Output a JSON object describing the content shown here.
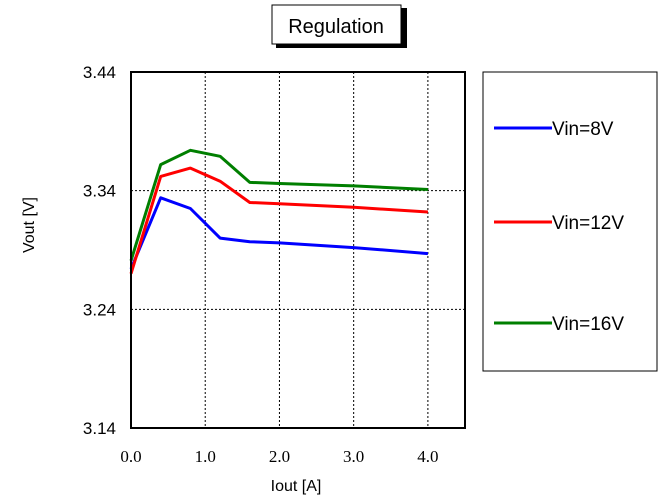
{
  "chart_data": {
    "type": "line",
    "title": "Regulation",
    "xlabel": "Iout [A]",
    "ylabel": "Vout [V]",
    "xlim": [
      0,
      4.5
    ],
    "ylim": [
      3.14,
      3.44
    ],
    "x_ticks": [
      "0.0",
      "1.0",
      "2.0",
      "3.0",
      "4.0"
    ],
    "y_ticks": [
      "3.14",
      "3.24",
      "3.34",
      "3.44"
    ],
    "grid": true,
    "legend_position": "right",
    "series": [
      {
        "name": "Vin=8V",
        "color": "#0000ff",
        "x": [
          0.0,
          0.4,
          0.8,
          1.2,
          1.6,
          2.0,
          3.0,
          4.0
        ],
        "y": [
          3.274,
          3.334,
          3.325,
          3.3,
          3.297,
          3.296,
          3.292,
          3.287
        ]
      },
      {
        "name": "Vin=12V",
        "color": "#ff0000",
        "x": [
          0.0,
          0.4,
          0.8,
          1.2,
          1.6,
          2.0,
          3.0,
          4.0
        ],
        "y": [
          3.27,
          3.352,
          3.359,
          3.348,
          3.33,
          3.329,
          3.326,
          3.322
        ]
      },
      {
        "name": "Vin=16V",
        "color": "#007f00",
        "x": [
          0.0,
          0.4,
          0.8,
          1.2,
          1.6,
          2.0,
          3.0,
          4.0
        ],
        "y": [
          3.281,
          3.362,
          3.374,
          3.369,
          3.347,
          3.346,
          3.344,
          3.341
        ]
      }
    ]
  }
}
